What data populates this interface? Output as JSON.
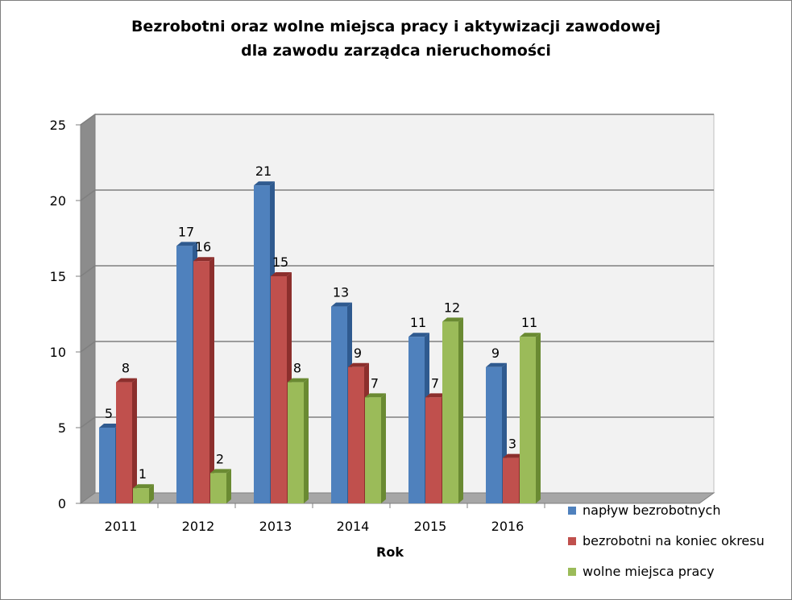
{
  "chart_data": {
    "type": "bar",
    "title_line1": "Bezrobotni oraz wolne miejsca pracy i aktywizacji zawodowej",
    "title_line2": "dla zawodu zarządca nieruchomości",
    "xlabel": "Rok",
    "ylabel": "",
    "ylim": [
      0,
      25
    ],
    "yticks": [
      0,
      5,
      10,
      15,
      20,
      25
    ],
    "categories": [
      "2011",
      "2012",
      "2013",
      "2014",
      "2015",
      "2016"
    ],
    "series": [
      {
        "name": "napływ bezrobotnych",
        "values": [
          5,
          17,
          21,
          13,
          11,
          9
        ],
        "color": "#4f81bd",
        "side": "#2f5a8f"
      },
      {
        "name": "bezrobotni na koniec okresu",
        "values": [
          8,
          16,
          15,
          9,
          7,
          3
        ],
        "color": "#c0504d",
        "side": "#8c2f2d"
      },
      {
        "name": "wolne miejsca pracy",
        "values": [
          1,
          2,
          8,
          7,
          12,
          11
        ],
        "color": "#9bbb59",
        "side": "#6a8a32"
      }
    ],
    "grid": true,
    "legend_position": "bottom-right"
  }
}
